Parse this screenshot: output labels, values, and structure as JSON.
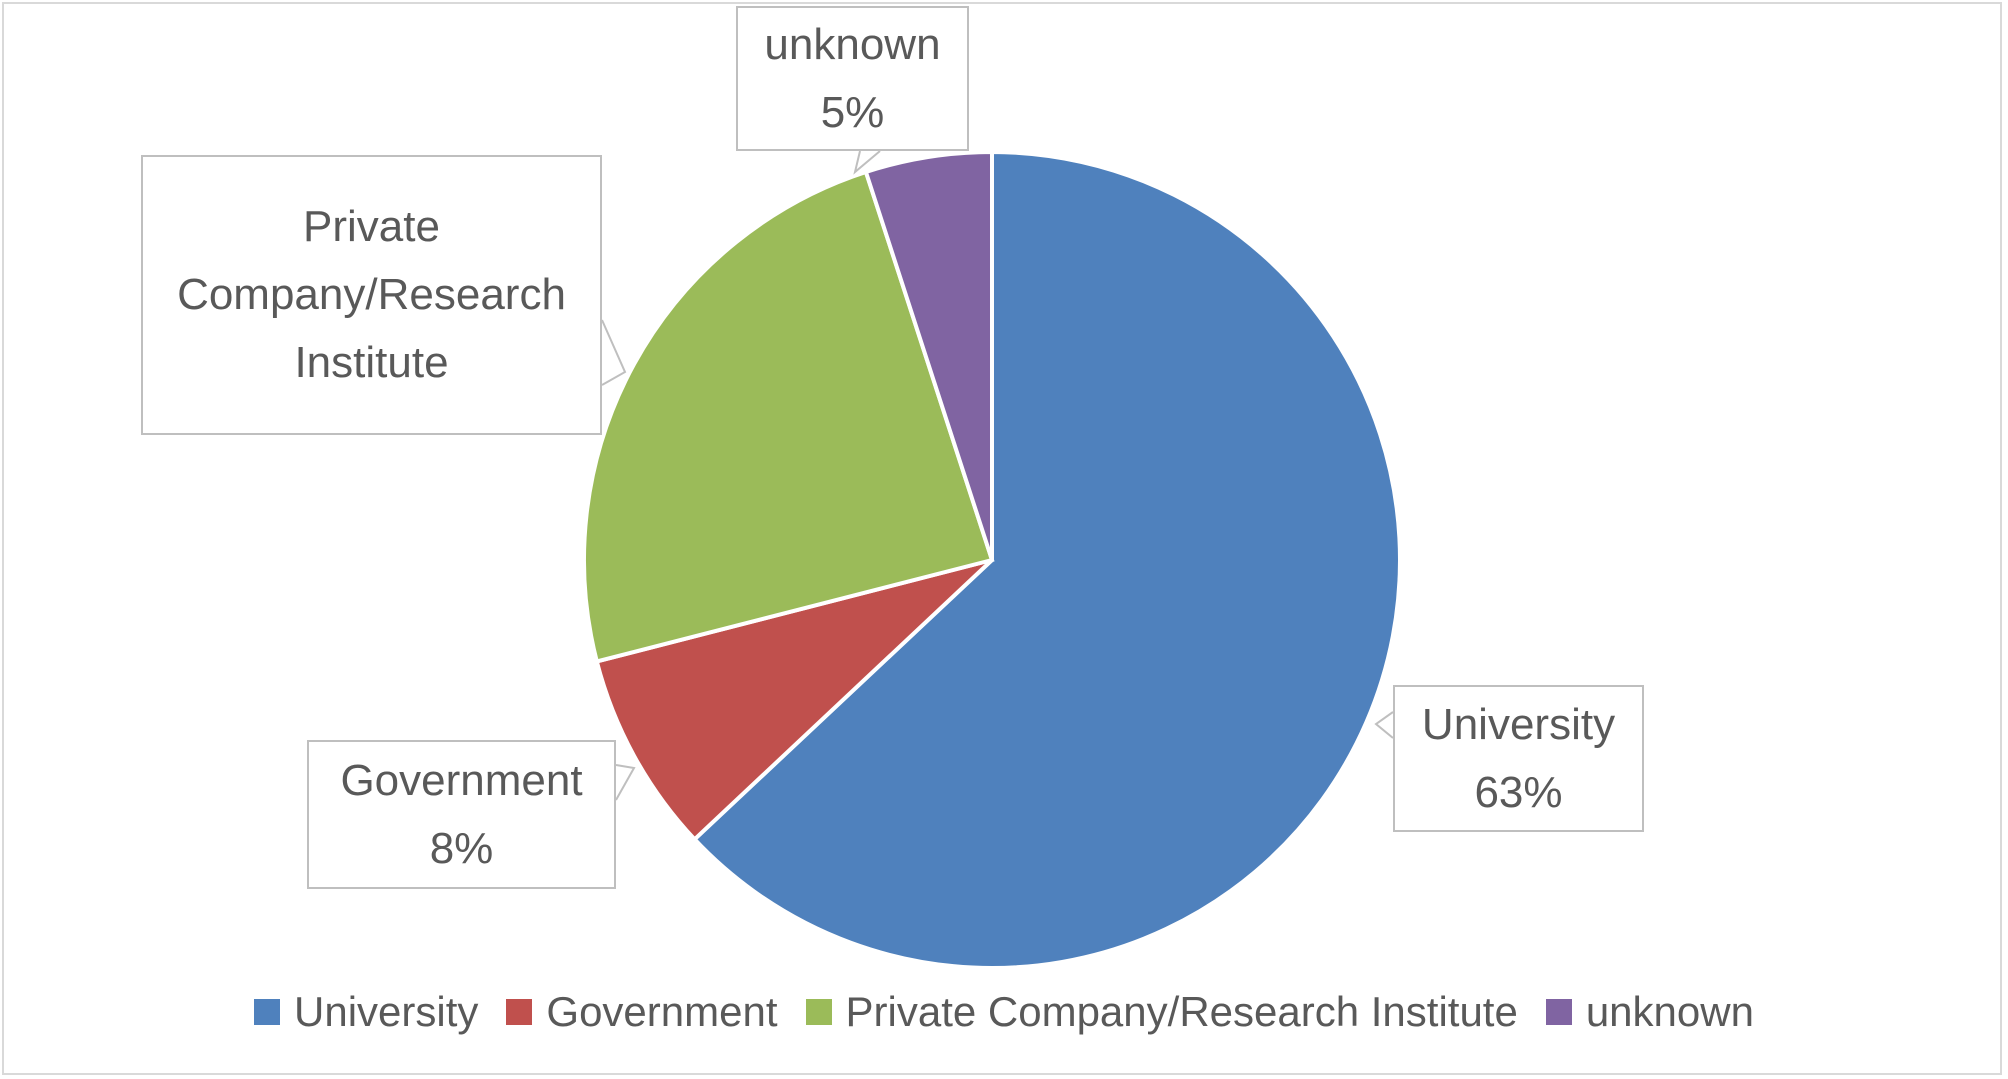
{
  "chart_data": {
    "type": "pie",
    "categories": [
      "University",
      "Government",
      "Private Company/Research Institute",
      "unknown"
    ],
    "values": [
      63,
      8,
      24,
      5
    ],
    "value_labels": [
      "63%",
      "8%",
      null,
      "5%"
    ],
    "colors": [
      "#4f81bd",
      "#c0504d",
      "#9bbb59",
      "#8064a2"
    ],
    "legend": "bottom"
  }
}
